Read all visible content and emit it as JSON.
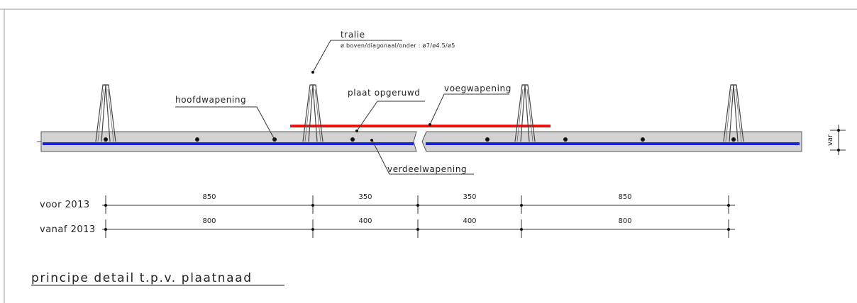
{
  "labels": {
    "tralie": "tralie",
    "tralie_spec": "ø boven/diagonaal/onder : ø7/ø4.5/ø5",
    "hoofdwapening": "hoofdwapening",
    "plaat_opgeruwd": "plaat opgeruwd",
    "voegwapening": "voegwapening",
    "verdeelwapening": "verdeelwapening",
    "var": "var"
  },
  "dimensions": {
    "rows": [
      {
        "label": "voor 2013",
        "values": [
          "850",
          "350",
          "350",
          "850"
        ]
      },
      {
        "label": "vanaf 2013",
        "values": [
          "800",
          "400",
          "400",
          "800"
        ]
      }
    ]
  },
  "title": "principe detail t.p.v. plaatnaad",
  "colors": {
    "slab_fill": "#d2d2d2",
    "rebar_blue": "#1a24d6",
    "joint_red": "#e51515",
    "line": "#333333"
  }
}
